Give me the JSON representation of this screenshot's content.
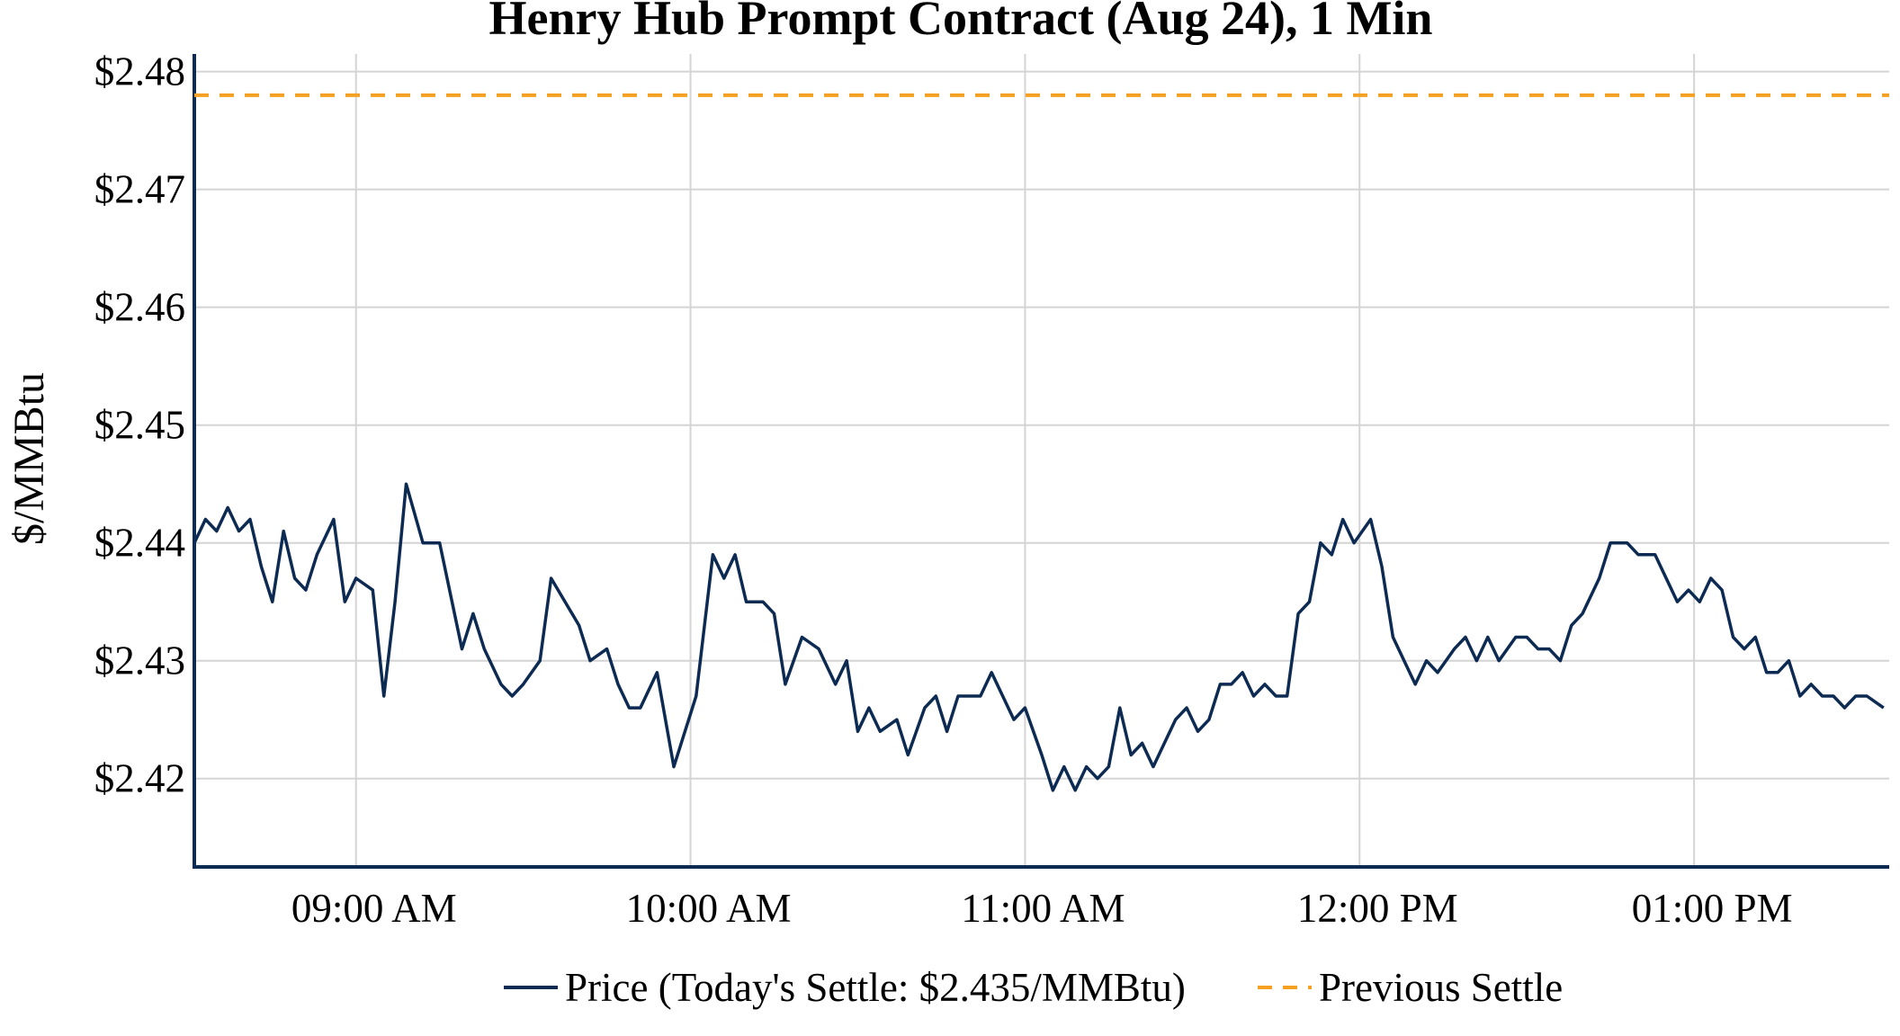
{
  "chart_data": {
    "type": "line",
    "title": "Henry Hub Prompt Contract (Aug 24), 1 Min",
    "xlabel": "",
    "ylabel": "$/MMBtu",
    "x_start_time": "08:31",
    "x_end_time": "13:35",
    "x_ticks": [
      {
        "time": "09:00",
        "label": "09:00 AM"
      },
      {
        "time": "10:00",
        "label": "10:00 AM"
      },
      {
        "time": "11:00",
        "label": "11:00 AM"
      },
      {
        "time": "12:00",
        "label": "12:00 PM"
      },
      {
        "time": "13:00",
        "label": "01:00 PM"
      }
    ],
    "ylim": [
      2.4125,
      2.4815
    ],
    "y_ticks": [
      {
        "value": 2.42,
        "label": "$2.42"
      },
      {
        "value": 2.43,
        "label": "$2.43"
      },
      {
        "value": 2.44,
        "label": "$2.44"
      },
      {
        "value": 2.45,
        "label": "$2.45"
      },
      {
        "value": 2.46,
        "label": "$2.46"
      },
      {
        "value": 2.47,
        "label": "$2.47"
      },
      {
        "value": 2.48,
        "label": "$2.48"
      }
    ],
    "grid": true,
    "legend_position": "bottom-center",
    "series": [
      {
        "name": "Price (Today's Settle: $2.435/MMBtu)",
        "color": "#0d2b52",
        "style": "solid",
        "points": [
          [
            "08:31",
            2.44
          ],
          [
            "08:33",
            2.442
          ],
          [
            "08:35",
            2.441
          ],
          [
            "08:37",
            2.443
          ],
          [
            "08:39",
            2.441
          ],
          [
            "08:41",
            2.442
          ],
          [
            "08:43",
            2.438
          ],
          [
            "08:45",
            2.435
          ],
          [
            "08:47",
            2.441
          ],
          [
            "08:49",
            2.437
          ],
          [
            "08:51",
            2.436
          ],
          [
            "08:53",
            2.439
          ],
          [
            "08:56",
            2.442
          ],
          [
            "08:58",
            2.435
          ],
          [
            "09:00",
            2.437
          ],
          [
            "09:03",
            2.436
          ],
          [
            "09:05",
            2.427
          ],
          [
            "09:07",
            2.435
          ],
          [
            "09:09",
            2.445
          ],
          [
            "09:12",
            2.44
          ],
          [
            "09:15",
            2.44
          ],
          [
            "09:19",
            2.431
          ],
          [
            "09:21",
            2.434
          ],
          [
            "09:23",
            2.431
          ],
          [
            "09:26",
            2.428
          ],
          [
            "09:28",
            2.427
          ],
          [
            "09:30",
            2.428
          ],
          [
            "09:33",
            2.43
          ],
          [
            "09:35",
            2.437
          ],
          [
            "09:40",
            2.433
          ],
          [
            "09:42",
            2.43
          ],
          [
            "09:45",
            2.431
          ],
          [
            "09:47",
            2.428
          ],
          [
            "09:49",
            2.426
          ],
          [
            "09:51",
            2.426
          ],
          [
            "09:54",
            2.429
          ],
          [
            "09:57",
            2.421
          ],
          [
            "09:59",
            2.424
          ],
          [
            "10:01",
            2.427
          ],
          [
            "10:04",
            2.439
          ],
          [
            "10:06",
            2.437
          ],
          [
            "10:08",
            2.439
          ],
          [
            "10:10",
            2.435
          ],
          [
            "10:13",
            2.435
          ],
          [
            "10:15",
            2.434
          ],
          [
            "10:17",
            2.428
          ],
          [
            "10:20",
            2.432
          ],
          [
            "10:23",
            2.431
          ],
          [
            "10:26",
            2.428
          ],
          [
            "10:28",
            2.43
          ],
          [
            "10:30",
            2.424
          ],
          [
            "10:32",
            2.426
          ],
          [
            "10:34",
            2.424
          ],
          [
            "10:37",
            2.425
          ],
          [
            "10:39",
            2.422
          ],
          [
            "10:42",
            2.426
          ],
          [
            "10:44",
            2.427
          ],
          [
            "10:46",
            2.424
          ],
          [
            "10:48",
            2.427
          ],
          [
            "10:52",
            2.427
          ],
          [
            "10:54",
            2.429
          ],
          [
            "10:56",
            2.427
          ],
          [
            "10:58",
            2.425
          ],
          [
            "11:00",
            2.426
          ],
          [
            "11:03",
            2.422
          ],
          [
            "11:05",
            2.419
          ],
          [
            "11:07",
            2.421
          ],
          [
            "11:09",
            2.419
          ],
          [
            "11:11",
            2.421
          ],
          [
            "11:13",
            2.42
          ],
          [
            "11:15",
            2.421
          ],
          [
            "11:17",
            2.426
          ],
          [
            "11:19",
            2.422
          ],
          [
            "11:21",
            2.423
          ],
          [
            "11:23",
            2.421
          ],
          [
            "11:25",
            2.423
          ],
          [
            "11:27",
            2.425
          ],
          [
            "11:29",
            2.426
          ],
          [
            "11:31",
            2.424
          ],
          [
            "11:33",
            2.425
          ],
          [
            "11:35",
            2.428
          ],
          [
            "11:37",
            2.428
          ],
          [
            "11:39",
            2.429
          ],
          [
            "11:41",
            2.427
          ],
          [
            "11:43",
            2.428
          ],
          [
            "11:45",
            2.427
          ],
          [
            "11:47",
            2.427
          ],
          [
            "11:49",
            2.434
          ],
          [
            "11:51",
            2.435
          ],
          [
            "11:53",
            2.44
          ],
          [
            "11:55",
            2.439
          ],
          [
            "11:57",
            2.442
          ],
          [
            "11:59",
            2.44
          ],
          [
            "12:02",
            2.442
          ],
          [
            "12:04",
            2.438
          ],
          [
            "12:06",
            2.432
          ],
          [
            "12:08",
            2.43
          ],
          [
            "12:10",
            2.428
          ],
          [
            "12:12",
            2.43
          ],
          [
            "12:14",
            2.429
          ],
          [
            "12:17",
            2.431
          ],
          [
            "12:19",
            2.432
          ],
          [
            "12:21",
            2.43
          ],
          [
            "12:23",
            2.432
          ],
          [
            "12:25",
            2.43
          ],
          [
            "12:28",
            2.432
          ],
          [
            "12:30",
            2.432
          ],
          [
            "12:32",
            2.431
          ],
          [
            "12:34",
            2.431
          ],
          [
            "12:36",
            2.43
          ],
          [
            "12:38",
            2.433
          ],
          [
            "12:40",
            2.434
          ],
          [
            "12:43",
            2.437
          ],
          [
            "12:45",
            2.44
          ],
          [
            "12:48",
            2.44
          ],
          [
            "12:50",
            2.439
          ],
          [
            "12:53",
            2.439
          ],
          [
            "12:55",
            2.437
          ],
          [
            "12:57",
            2.435
          ],
          [
            "12:59",
            2.436
          ],
          [
            "13:01",
            2.435
          ],
          [
            "13:03",
            2.437
          ],
          [
            "13:05",
            2.436
          ],
          [
            "13:07",
            2.432
          ],
          [
            "13:09",
            2.431
          ],
          [
            "13:11",
            2.432
          ],
          [
            "13:13",
            2.429
          ],
          [
            "13:15",
            2.429
          ],
          [
            "13:17",
            2.43
          ],
          [
            "13:19",
            2.427
          ],
          [
            "13:21",
            2.428
          ],
          [
            "13:23",
            2.427
          ],
          [
            "13:25",
            2.427
          ],
          [
            "13:27",
            2.426
          ],
          [
            "13:29",
            2.427
          ],
          [
            "13:31",
            2.427
          ],
          [
            "13:34",
            2.426
          ]
        ]
      },
      {
        "name": "Previous Settle",
        "color": "#f5a021",
        "style": "dashed",
        "value": 2.478
      }
    ]
  }
}
